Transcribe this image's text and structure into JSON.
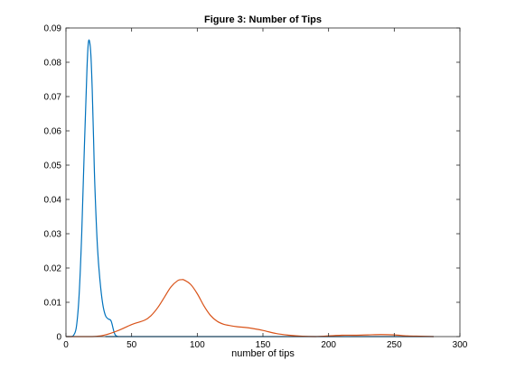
{
  "chart_data": {
    "type": "line",
    "title": "Figure 3: Number of Tips",
    "xlabel": "number of tips",
    "ylabel": "",
    "xlim": [
      0,
      300
    ],
    "ylim": [
      0,
      0.09
    ],
    "xticks": [
      0,
      50,
      100,
      150,
      200,
      250,
      300
    ],
    "xtick_labels": [
      "0",
      "50",
      "100",
      "150",
      "200",
      "250",
      "300"
    ],
    "yticks": [
      0,
      0.01,
      0.02,
      0.03,
      0.04,
      0.05,
      0.06,
      0.07,
      0.08,
      0.09
    ],
    "ytick_labels": [
      "0",
      "0.01",
      "0.02",
      "0.03",
      "0.04",
      "0.05",
      "0.06",
      "0.07",
      "0.08",
      "0.09"
    ],
    "grid": false,
    "box": true,
    "series": [
      {
        "color": "#0072BD",
        "x": [
          0,
          4,
          6,
          8,
          10,
          12,
          14,
          16,
          17,
          18,
          19,
          20,
          21,
          22,
          24,
          26,
          28,
          30,
          32,
          34,
          35,
          36,
          37,
          38,
          40,
          45,
          50,
          280
        ],
        "y": [
          0,
          0,
          0.0005,
          0.003,
          0.012,
          0.03,
          0.055,
          0.078,
          0.0855,
          0.086,
          0.082,
          0.072,
          0.058,
          0.044,
          0.026,
          0.016,
          0.0095,
          0.0062,
          0.0052,
          0.0048,
          0.0038,
          0.0022,
          0.0009,
          0.0003,
          0,
          0,
          0,
          0
        ]
      },
      {
        "color": "#D95319",
        "x": [
          0,
          20,
          30,
          40,
          50,
          60,
          65,
          70,
          75,
          80,
          85,
          88,
          90,
          95,
          100,
          105,
          110,
          115,
          120,
          125,
          130,
          140,
          150,
          160,
          170,
          180,
          190,
          200,
          210,
          220,
          230,
          240,
          250,
          260,
          270,
          280
        ],
        "y": [
          0,
          0,
          0.0005,
          0.0018,
          0.0035,
          0.0048,
          0.0062,
          0.0085,
          0.0115,
          0.0145,
          0.0163,
          0.0166,
          0.0165,
          0.0152,
          0.0125,
          0.009,
          0.0062,
          0.0045,
          0.0036,
          0.0032,
          0.0029,
          0.0025,
          0.0018,
          0.0009,
          0.0004,
          0.0001,
          0,
          0.0002,
          0.0004,
          0.0004,
          0.0005,
          0.0006,
          0.0005,
          0.0002,
          0.0001,
          0
        ]
      }
    ]
  }
}
